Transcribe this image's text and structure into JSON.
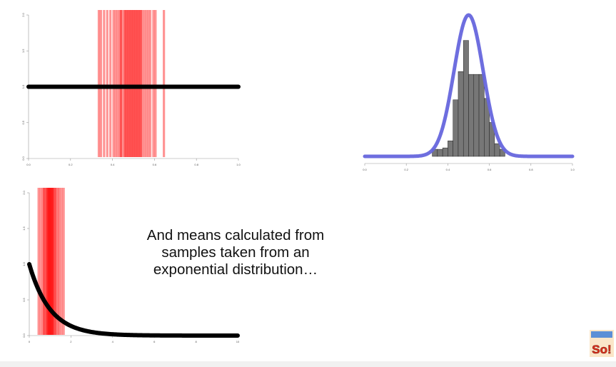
{
  "caption": "And means calculated from\nsamples taken from an\nexponential distribution…",
  "logo_text": "So!",
  "colors": {
    "sample_line": "#ff0000",
    "density": "#000000",
    "normal_curve": "#6666dd",
    "histogram": "#777777"
  },
  "chart_data": [
    {
      "id": "uniform",
      "type": "line",
      "description": "uniform density with sample means as red vertical lines",
      "xlim": [
        0,
        1
      ],
      "ylim": [
        0,
        2
      ],
      "x_ticks": [
        "0.0",
        "0.2",
        "0.4",
        "0.6",
        "0.8",
        "1.0"
      ],
      "y_ticks": [
        "0.0",
        "0.5",
        "1.0",
        "1.5",
        "2.0"
      ],
      "density": {
        "x": [
          0,
          1
        ],
        "y": [
          1,
          1
        ]
      },
      "sample_means": [
        0.335,
        0.345,
        0.36,
        0.375,
        0.39,
        0.405,
        0.415,
        0.425,
        0.435,
        0.44,
        0.445,
        0.455,
        0.46,
        0.465,
        0.47,
        0.475,
        0.48,
        0.485,
        0.49,
        0.495,
        0.5,
        0.505,
        0.51,
        0.515,
        0.52,
        0.525,
        0.53,
        0.535,
        0.54,
        0.55,
        0.56,
        0.57,
        0.58,
        0.595,
        0.605,
        0.645
      ]
    },
    {
      "id": "histogram",
      "type": "bar",
      "description": "histogram of sample means with fitted normal curve",
      "xlim": [
        0,
        1
      ],
      "ylim": [
        0,
        1
      ],
      "x_ticks": [
        "0.0",
        "0.2",
        "0.4",
        "0.6",
        "0.8",
        "1.0"
      ],
      "bins": [
        {
          "x0": 0.325,
          "x1": 0.35,
          "value": 0.05
        },
        {
          "x0": 0.35,
          "x1": 0.375,
          "value": 0.05
        },
        {
          "x0": 0.375,
          "x1": 0.4,
          "value": 0.06
        },
        {
          "x0": 0.4,
          "x1": 0.425,
          "value": 0.11
        },
        {
          "x0": 0.425,
          "x1": 0.45,
          "value": 0.4
        },
        {
          "x0": 0.45,
          "x1": 0.475,
          "value": 0.6
        },
        {
          "x0": 0.475,
          "x1": 0.5,
          "value": 0.82
        },
        {
          "x0": 0.5,
          "x1": 0.525,
          "value": 0.58
        },
        {
          "x0": 0.525,
          "x1": 0.55,
          "value": 0.58
        },
        {
          "x0": 0.55,
          "x1": 0.575,
          "value": 0.58
        },
        {
          "x0": 0.575,
          "x1": 0.6,
          "value": 0.41
        },
        {
          "x0": 0.6,
          "x1": 0.625,
          "value": 0.24
        },
        {
          "x0": 0.625,
          "x1": 0.65,
          "value": 0.09
        },
        {
          "x0": 0.65,
          "x1": 0.675,
          "value": 0.05
        }
      ],
      "normal_curve": {
        "mean": 0.5,
        "sd": 0.07,
        "peak": 1.0
      }
    },
    {
      "id": "exponential",
      "type": "line",
      "description": "exponential density with sample means as red vertical lines",
      "xlim": [
        0,
        10
      ],
      "ylim": [
        0,
        2
      ],
      "x_ticks": [
        "0",
        "2",
        "4",
        "6",
        "8",
        "10"
      ],
      "y_ticks": [
        "0.0",
        "0.5",
        "1.0",
        "1.5",
        "2.0"
      ],
      "density": {
        "rate": 1
      },
      "sample_means": [
        0.45,
        0.55,
        0.65,
        0.7,
        0.75,
        0.8,
        0.85,
        0.88,
        0.9,
        0.93,
        0.95,
        0.98,
        1.0,
        1.02,
        1.05,
        1.08,
        1.1,
        1.13,
        1.15,
        1.2,
        1.25,
        1.3,
        1.38,
        1.45,
        1.55,
        1.65
      ]
    }
  ]
}
